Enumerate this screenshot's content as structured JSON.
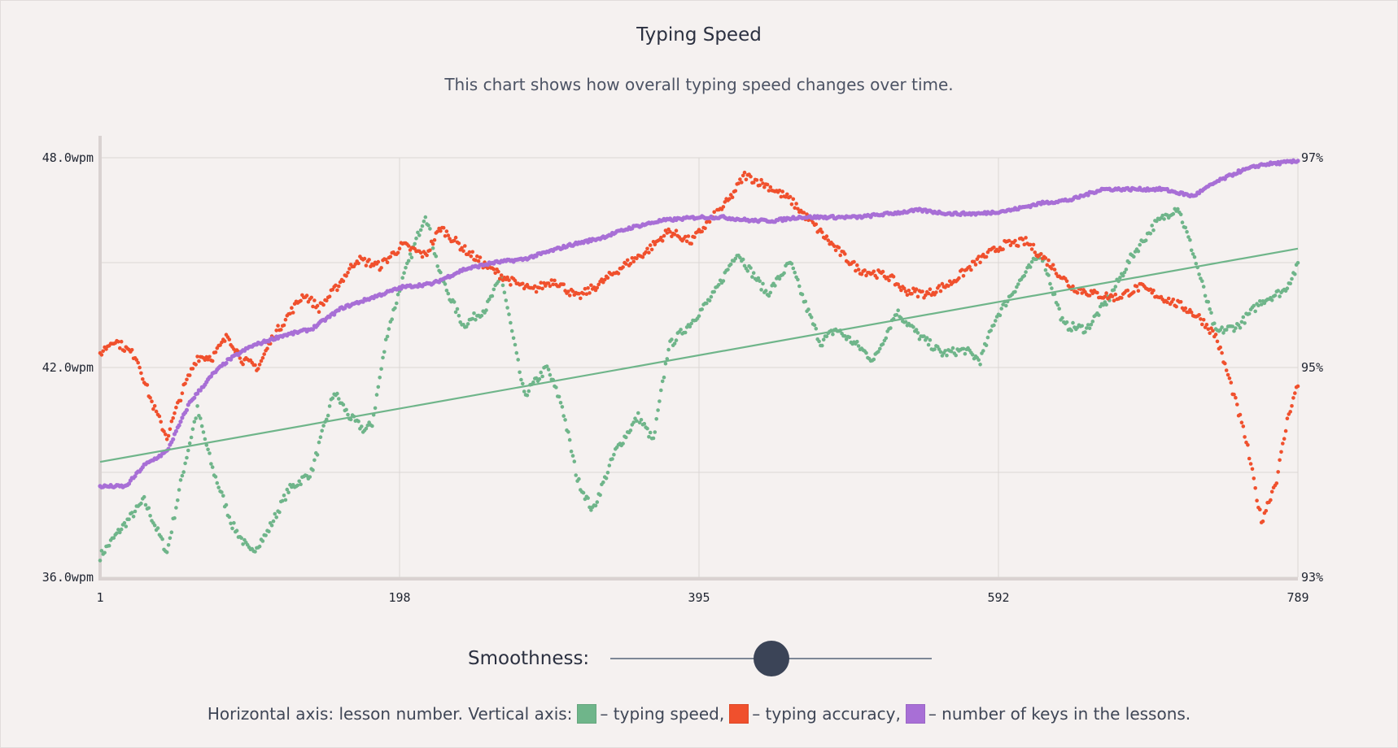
{
  "header": {
    "title": "Typing Speed",
    "subtitle": "This chart shows how overall typing speed changes over time."
  },
  "controls": {
    "smoothness_label": "Smoothness:",
    "smoothness_value": 0.5
  },
  "legend": {
    "prefix": "Horizontal axis: lesson number. Vertical axis:",
    "items": [
      {
        "label": "– typing speed,",
        "color": "#6fb58a"
      },
      {
        "label": "– typing accuracy,",
        "color": "#f0502d"
      },
      {
        "label": "– number of keys in the lessons.",
        "color": "#a86fd6"
      }
    ]
  },
  "chart_data": {
    "type": "scatter",
    "x_ticks": [
      1,
      198,
      395,
      592,
      789
    ],
    "xlim": [
      1,
      789
    ],
    "y_left": {
      "ticks": [
        "36.0wpm",
        "42.0wpm",
        "48.0wpm"
      ],
      "range": [
        36,
        48
      ]
    },
    "y_right": {
      "ticks": [
        "93%",
        "95%",
        "97%"
      ],
      "range": [
        93,
        97
      ]
    },
    "grid": true,
    "series": [
      {
        "key": "speed",
        "color": "#6fb58a",
        "axis": "left",
        "points": [
          [
            1,
            36.6
          ],
          [
            15,
            37.4
          ],
          [
            30,
            38.2
          ],
          [
            45,
            36.7
          ],
          [
            55,
            38.9
          ],
          [
            65,
            40.8
          ],
          [
            75,
            39.1
          ],
          [
            88,
            37.5
          ],
          [
            100,
            36.7
          ],
          [
            110,
            37.2
          ],
          [
            125,
            38.5
          ],
          [
            140,
            39.0
          ],
          [
            155,
            41.3
          ],
          [
            165,
            40.6
          ],
          [
            175,
            40.2
          ],
          [
            180,
            40.4
          ],
          [
            190,
            43.0
          ],
          [
            200,
            44.5
          ],
          [
            215,
            46.4
          ],
          [
            225,
            44.6
          ],
          [
            240,
            43.2
          ],
          [
            255,
            43.7
          ],
          [
            265,
            44.6
          ],
          [
            280,
            41.2
          ],
          [
            295,
            42.0
          ],
          [
            305,
            40.9
          ],
          [
            315,
            38.8
          ],
          [
            325,
            37.9
          ],
          [
            340,
            39.6
          ],
          [
            355,
            40.6
          ],
          [
            365,
            39.9
          ],
          [
            375,
            42.6
          ],
          [
            390,
            43.3
          ],
          [
            405,
            44.1
          ],
          [
            420,
            45.3
          ],
          [
            440,
            44.1
          ],
          [
            455,
            45.0
          ],
          [
            465,
            43.8
          ],
          [
            475,
            42.7
          ],
          [
            485,
            43.1
          ],
          [
            500,
            42.6
          ],
          [
            510,
            42.2
          ],
          [
            525,
            43.6
          ],
          [
            540,
            42.9
          ],
          [
            555,
            42.4
          ],
          [
            570,
            42.5
          ],
          [
            580,
            42.2
          ],
          [
            590,
            43.4
          ],
          [
            605,
            44.4
          ],
          [
            620,
            45.3
          ],
          [
            635,
            43.2
          ],
          [
            650,
            43.1
          ],
          [
            665,
            44.0
          ],
          [
            680,
            45.2
          ],
          [
            695,
            46.1
          ],
          [
            710,
            46.6
          ],
          [
            720,
            45.3
          ],
          [
            735,
            43.0
          ],
          [
            750,
            43.2
          ],
          [
            765,
            43.9
          ],
          [
            780,
            44.2
          ],
          [
            789,
            44.9
          ]
        ]
      },
      {
        "key": "accuracy",
        "color": "#f0502d",
        "axis": "left",
        "points": [
          [
            1,
            42.4
          ],
          [
            10,
            42.8
          ],
          [
            25,
            42.3
          ],
          [
            35,
            41.0
          ],
          [
            45,
            40.0
          ],
          [
            55,
            41.3
          ],
          [
            65,
            42.3
          ],
          [
            75,
            42.3
          ],
          [
            85,
            42.9
          ],
          [
            95,
            42.2
          ],
          [
            105,
            42.0
          ],
          [
            115,
            42.9
          ],
          [
            125,
            43.5
          ],
          [
            135,
            44.1
          ],
          [
            145,
            43.7
          ],
          [
            155,
            44.2
          ],
          [
            170,
            45.1
          ],
          [
            185,
            44.9
          ],
          [
            200,
            45.5
          ],
          [
            215,
            45.2
          ],
          [
            225,
            46.0
          ],
          [
            240,
            45.4
          ],
          [
            255,
            44.9
          ],
          [
            270,
            44.5
          ],
          [
            285,
            44.2
          ],
          [
            300,
            44.5
          ],
          [
            315,
            44.0
          ],
          [
            330,
            44.4
          ],
          [
            345,
            44.9
          ],
          [
            360,
            45.3
          ],
          [
            375,
            45.9
          ],
          [
            390,
            45.6
          ],
          [
            400,
            46.1
          ],
          [
            415,
            46.8
          ],
          [
            425,
            47.5
          ],
          [
            440,
            47.2
          ],
          [
            455,
            46.8
          ],
          [
            470,
            46.1
          ],
          [
            485,
            45.4
          ],
          [
            500,
            44.8
          ],
          [
            520,
            44.6
          ],
          [
            530,
            44.2
          ],
          [
            545,
            44.1
          ],
          [
            560,
            44.4
          ],
          [
            580,
            45.1
          ],
          [
            595,
            45.5
          ],
          [
            610,
            45.6
          ],
          [
            625,
            45.0
          ],
          [
            640,
            44.3
          ],
          [
            655,
            44.1
          ],
          [
            670,
            44.0
          ],
          [
            685,
            44.3
          ],
          [
            700,
            44.0
          ],
          [
            715,
            43.7
          ],
          [
            725,
            43.4
          ],
          [
            735,
            42.9
          ],
          [
            745,
            41.5
          ],
          [
            755,
            39.9
          ],
          [
            765,
            37.6
          ],
          [
            775,
            38.8
          ],
          [
            783,
            40.7
          ],
          [
            789,
            41.5
          ]
        ]
      },
      {
        "key": "keys",
        "color": "#a86fd6",
        "axis": "left",
        "points": [
          [
            1,
            38.6
          ],
          [
            18,
            38.6
          ],
          [
            30,
            39.2
          ],
          [
            45,
            39.6
          ],
          [
            60,
            41.0
          ],
          [
            75,
            41.8
          ],
          [
            85,
            42.2
          ],
          [
            100,
            42.6
          ],
          [
            120,
            42.9
          ],
          [
            140,
            43.1
          ],
          [
            160,
            43.7
          ],
          [
            180,
            44.0
          ],
          [
            200,
            44.3
          ],
          [
            220,
            44.4
          ],
          [
            240,
            44.8
          ],
          [
            260,
            45.0
          ],
          [
            280,
            45.1
          ],
          [
            295,
            45.3
          ],
          [
            310,
            45.5
          ],
          [
            330,
            45.7
          ],
          [
            350,
            46.0
          ],
          [
            370,
            46.2
          ],
          [
            395,
            46.3
          ],
          [
            410,
            46.3
          ],
          [
            430,
            46.2
          ],
          [
            445,
            46.2
          ],
          [
            460,
            46.3
          ],
          [
            480,
            46.3
          ],
          [
            500,
            46.3
          ],
          [
            520,
            46.4
          ],
          [
            540,
            46.5
          ],
          [
            560,
            46.4
          ],
          [
            580,
            46.4
          ],
          [
            600,
            46.5
          ],
          [
            620,
            46.7
          ],
          [
            640,
            46.8
          ],
          [
            660,
            47.1
          ],
          [
            680,
            47.1
          ],
          [
            700,
            47.1
          ],
          [
            720,
            46.9
          ],
          [
            735,
            47.3
          ],
          [
            750,
            47.6
          ],
          [
            765,
            47.8
          ],
          [
            789,
            47.9
          ]
        ]
      },
      {
        "key": "trend",
        "type": "line",
        "color": "#6fb58a",
        "axis": "left",
        "points": [
          [
            1,
            39.3
          ],
          [
            789,
            45.4
          ]
        ]
      }
    ]
  }
}
